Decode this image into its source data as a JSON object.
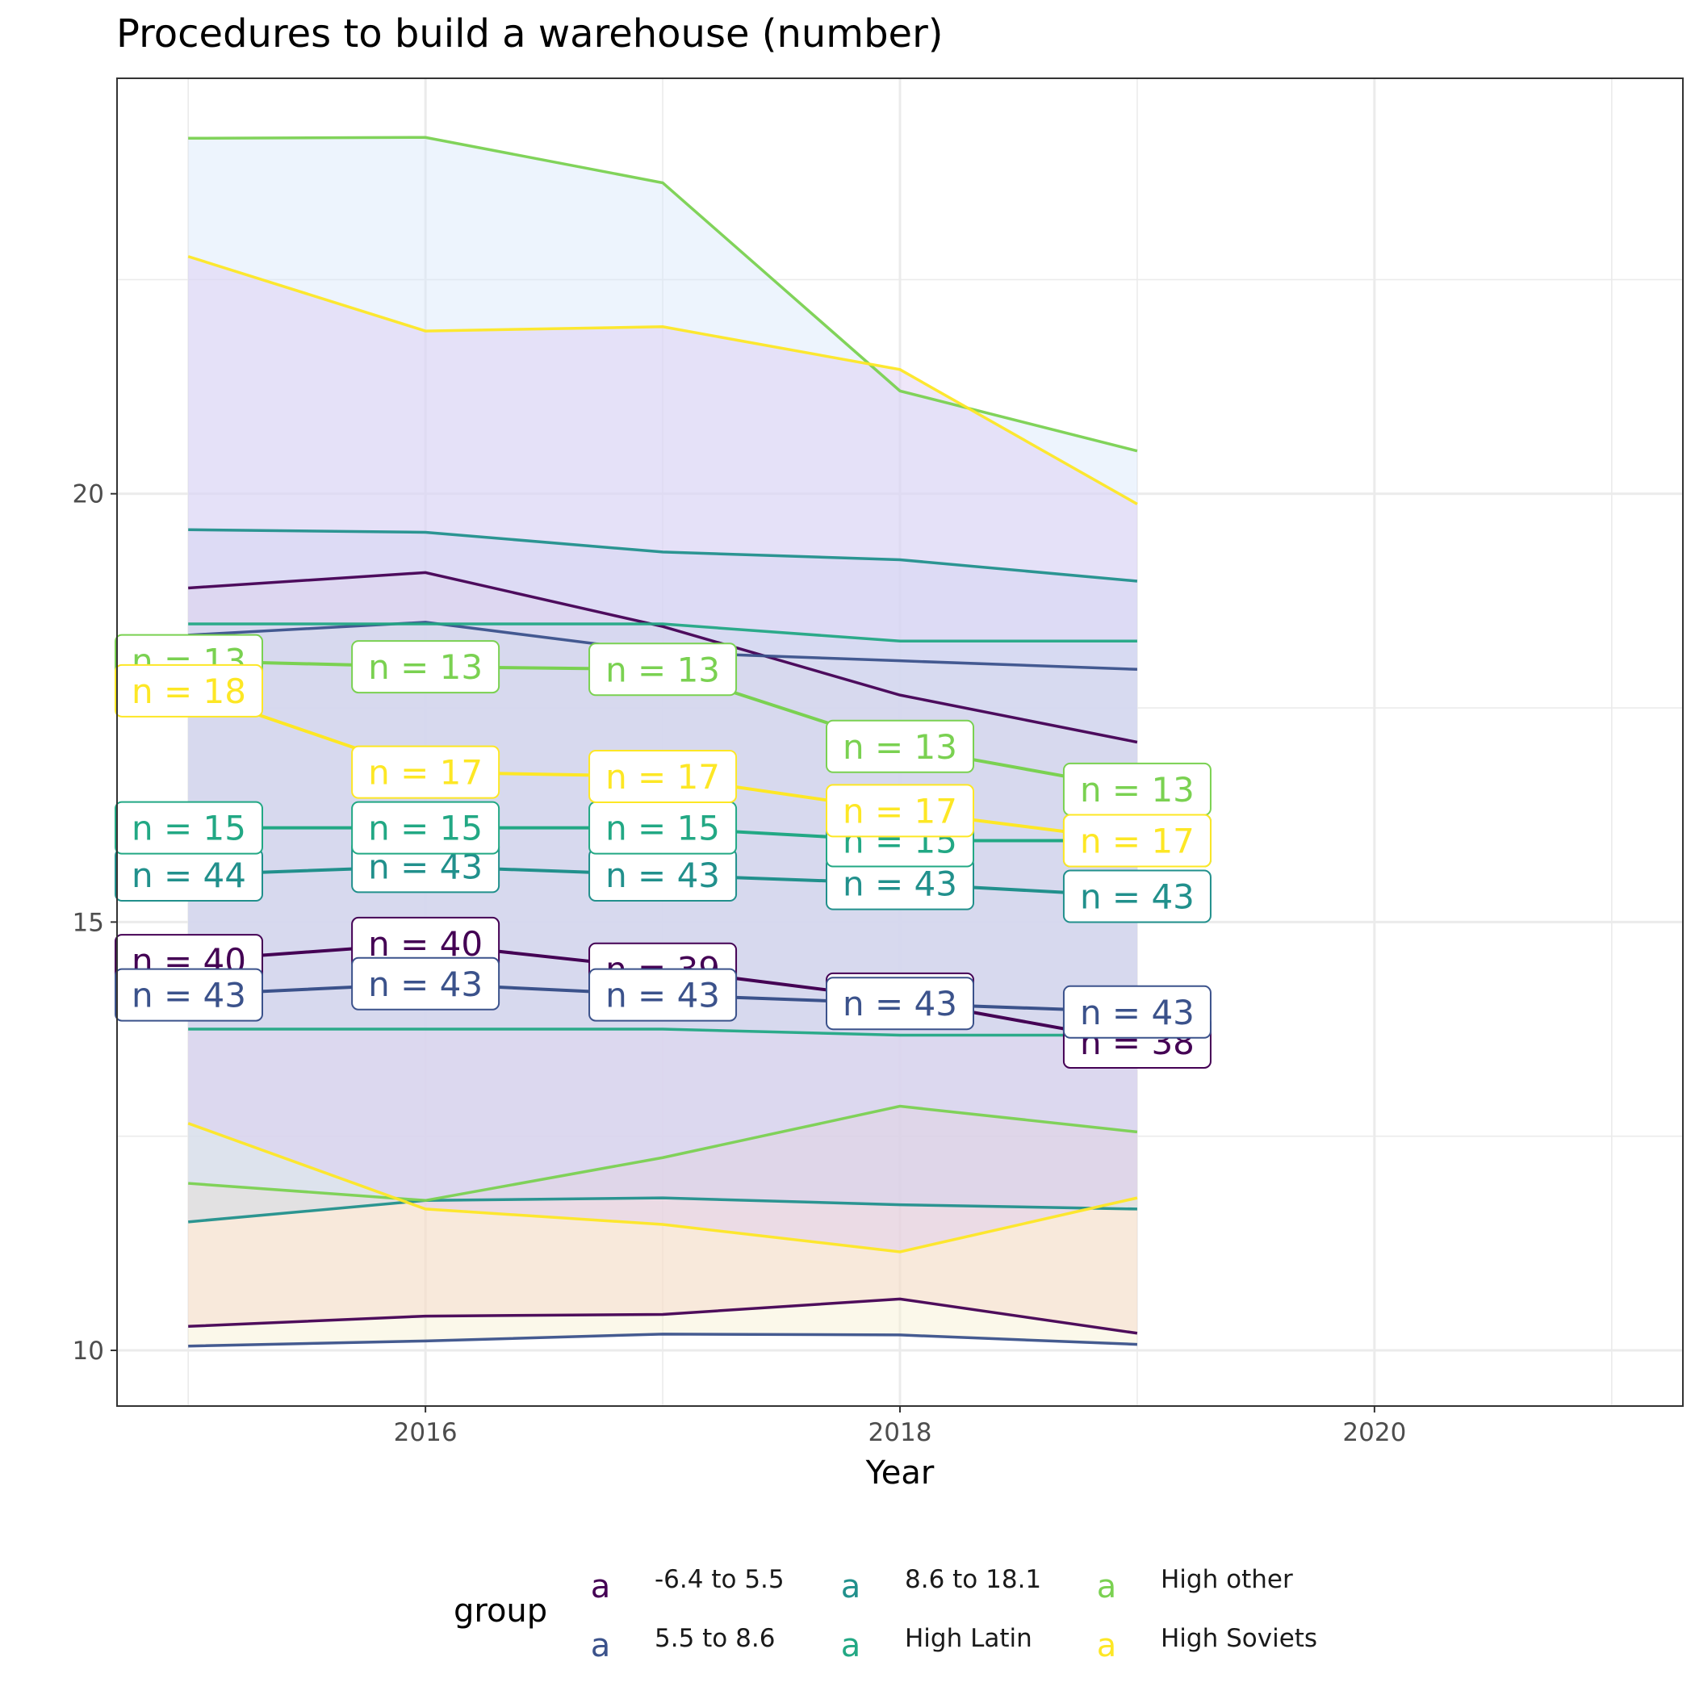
{
  "chart_data": {
    "type": "line",
    "title": "Procedures to build a warehouse (number)",
    "xlabel": "Year",
    "ylabel": "",
    "xlim": [
      2014.7,
      2021.3
    ],
    "ylim": [
      9.35,
      24.85
    ],
    "x_ticks": [
      2016,
      2018,
      2020
    ],
    "y_ticks": [
      10,
      15,
      20
    ],
    "grid": true,
    "legend": {
      "title": "group",
      "position": "bottom",
      "key_glyph": "a"
    },
    "x": [
      2015,
      2016,
      2017,
      2018,
      2019
    ],
    "series": [
      {
        "name": "-6.4 to 5.5",
        "color": "#440154",
        "mean": [
          14.55,
          14.75,
          14.45,
          14.1,
          13.6
        ],
        "upper": [
          18.9,
          19.08,
          18.45,
          17.65,
          17.1
        ],
        "lower": [
          10.28,
          10.4,
          10.42,
          10.6,
          10.2
        ],
        "band_fill": "#f5c0c0",
        "n_labels": [
          "n = 40",
          "n = 40",
          "n = 39",
          "n = 43",
          "n = 38"
        ]
      },
      {
        "name": "5.5 to 8.6",
        "color": "#3b528b",
        "mean": [
          14.15,
          14.28,
          14.15,
          14.05,
          13.95
        ],
        "upper": [
          18.35,
          18.5,
          18.15,
          18.05,
          17.95
        ],
        "lower": [
          10.05,
          10.11,
          10.19,
          10.18,
          10.07
        ],
        "band_fill": "#f6f0d0",
        "n_labels": [
          "n = 43",
          "n = 43",
          "n = 43",
          "n = 43",
          "n = 43"
        ]
      },
      {
        "name": "8.6 to 18.1",
        "color": "#21908c",
        "mean": [
          15.55,
          15.65,
          15.55,
          15.45,
          15.3
        ],
        "upper": [
          19.58,
          19.55,
          19.32,
          19.23,
          18.98
        ],
        "lower": [
          11.5,
          11.75,
          11.78,
          11.7,
          11.65
        ],
        "band_fill": "#c8d8ec",
        "n_labels": [
          "n = 44",
          "n = 43",
          "n = 43",
          "n = 43",
          "n = 43"
        ]
      },
      {
        "name": "High Latin",
        "color": "#22a884",
        "mean": [
          16.1,
          16.1,
          16.1,
          15.95,
          15.95
        ],
        "upper": [
          18.48,
          18.48,
          18.48,
          18.28,
          18.28
        ],
        "lower": [
          13.75,
          13.75,
          13.75,
          13.68,
          13.68
        ],
        "band_fill": "#b8e6e0",
        "n_labels": [
          "n = 15",
          "n = 15",
          "n = 15",
          "n = 15",
          "n = 15"
        ]
      },
      {
        "name": "High other",
        "color": "#7ad151",
        "mean": [
          18.05,
          17.98,
          17.95,
          17.05,
          16.55
        ],
        "upper": [
          24.15,
          24.16,
          23.63,
          21.2,
          20.5
        ],
        "lower": [
          11.95,
          11.75,
          12.25,
          12.85,
          12.55
        ],
        "band_fill": "#d6e6fa",
        "n_labels": [
          "n = 13",
          "n = 13",
          "n = 13",
          "n = 13",
          "n = 13"
        ]
      },
      {
        "name": "High Soviets",
        "color": "#fde725",
        "mean": [
          17.7,
          16.75,
          16.7,
          16.3,
          15.95
        ],
        "upper": [
          22.77,
          21.9,
          21.95,
          21.45,
          19.88
        ],
        "lower": [
          12.65,
          11.65,
          11.47,
          11.15,
          11.78
        ],
        "band_fill": "#dccaf2",
        "n_labels": [
          "n = 18",
          "n = 17",
          "n = 17",
          "n = 17",
          "n = 17"
        ]
      }
    ]
  }
}
